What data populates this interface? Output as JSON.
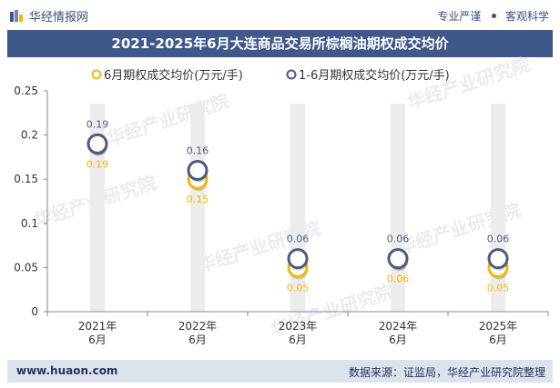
{
  "header": {
    "brand": "华经情报网",
    "tag1": "专业严谨",
    "tag2": "客观科学"
  },
  "title": "2021-2025年6月大连商品交易所棕榈油期权成交均价",
  "footer": {
    "url": "www.huaon.com",
    "source": "数据来源：证监局，华经产业研究院整理"
  },
  "watermark": "华经产业研究院",
  "colors": {
    "series1": "#f2b705",
    "series2": "#4a5b85",
    "band": "#ececec",
    "title_bg": "#3f5889"
  },
  "chart_data": {
    "type": "line",
    "title": "2021-2025年6月大连商品交易所棕榈油期权成交均价",
    "categories": [
      "2021年\n6月",
      "2022年\n6月",
      "2023年\n6月",
      "2024年\n6月",
      "2025年\n6月"
    ],
    "series": [
      {
        "name": "6月期权成交均价(万元/手)",
        "values": [
          0.19,
          0.15,
          0.05,
          0.06,
          0.05
        ]
      },
      {
        "name": "1-6月期权成交均价(万元/手)",
        "values": [
          0.19,
          0.16,
          0.06,
          0.06,
          0.06
        ]
      }
    ],
    "ylim": [
      0,
      0.25
    ],
    "yticks": [
      "0",
      "0.05",
      "0.1",
      "0.15",
      "0.2",
      "0.25"
    ],
    "xlabel": "",
    "ylabel": "",
    "legend": "top-center"
  }
}
